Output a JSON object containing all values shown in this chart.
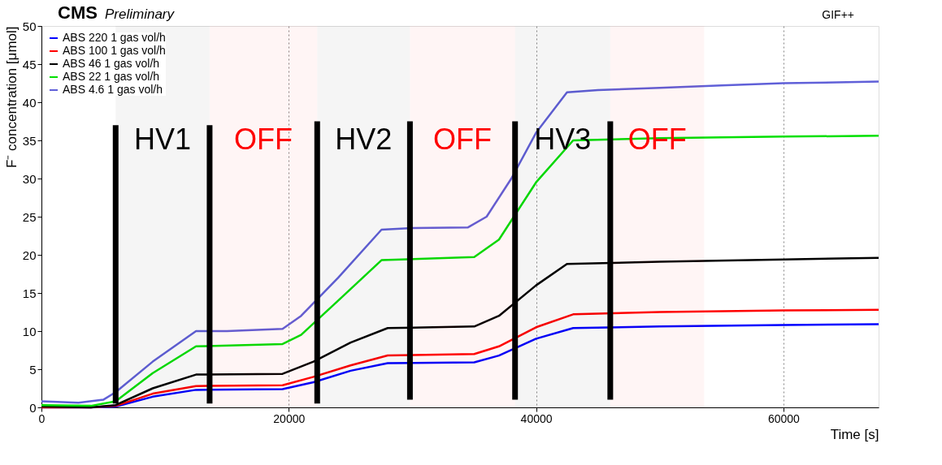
{
  "chart_data": {
    "type": "line",
    "title": "CMS",
    "subtitle": "Preliminary",
    "xlabel": "Time [s]",
    "ylabel": "F⁻ concentration [μmol]",
    "xlim": [
      0,
      67700
    ],
    "xticks": [
      0,
      20000,
      40000,
      60000
    ],
    "ylim": [
      0,
      50
    ],
    "yticks": [
      0,
      5,
      10,
      15,
      20,
      25,
      30,
      35,
      40,
      45,
      50
    ],
    "grid": "x",
    "legend": "top left",
    "marker": "none",
    "line_style": "solid",
    "annotations": [
      "GIF++"
    ],
    "bands": [
      {
        "axis": "x",
        "from": 6000,
        "to": 13600,
        "label": "HV1",
        "color": "#000000"
      },
      {
        "axis": "x",
        "from": 13600,
        "to": 22300,
        "label": "OFF",
        "color": "#ff0000"
      },
      {
        "axis": "x",
        "from": 22300,
        "to": 29800,
        "label": "HV2",
        "color": "#000000"
      },
      {
        "axis": "x",
        "from": 29800,
        "to": 38300,
        "label": "OFF",
        "color": "#ff0000"
      },
      {
        "axis": "x",
        "from": 38300,
        "to": 46000,
        "label": "HV3",
        "color": "#000000"
      },
      {
        "axis": "x",
        "from": 46000,
        "to": 53600,
        "label": "OFF",
        "color": "#ff0000"
      }
    ],
    "series": [
      {
        "name": "ABS 220 1 gas vol/h",
        "color": "#0000ff",
        "x": [
          0,
          4000,
          6000,
          9000,
          12500,
          19500,
          22000,
          25000,
          28000,
          35000,
          37000,
          40000,
          43000,
          50000,
          60000,
          67700
        ],
        "values": [
          0,
          0,
          0.1,
          1.4,
          2.3,
          2.4,
          3.3,
          4.8,
          5.8,
          5.9,
          6.8,
          9,
          10.4,
          10.6,
          10.8,
          10.9
        ]
      },
      {
        "name": "ABS 100 1 gas vol/h",
        "color": "#ff0000",
        "x": [
          0,
          4000,
          6000,
          9000,
          12500,
          19500,
          22000,
          25000,
          28000,
          35000,
          37000,
          40000,
          43000,
          50000,
          60000,
          67700
        ],
        "values": [
          0,
          0,
          0.2,
          1.8,
          2.8,
          2.9,
          4,
          5.5,
          6.8,
          7,
          8,
          10.5,
          12.2,
          12.5,
          12.7,
          12.8
        ]
      },
      {
        "name": "ABS 46 1 gas vol/h",
        "color": "#000000",
        "x": [
          0,
          4000,
          6000,
          9000,
          12500,
          19500,
          22000,
          25000,
          28000,
          35000,
          37000,
          40000,
          42500,
          50000,
          60000,
          67700
        ],
        "values": [
          0.1,
          0,
          0.3,
          2.5,
          4.3,
          4.4,
          6,
          8.5,
          10.4,
          10.6,
          12,
          16,
          18.8,
          19.1,
          19.4,
          19.6
        ]
      },
      {
        "name": "ABS 22 1 gas vol/h",
        "color": "#00e000",
        "x": [
          0,
          4000,
          6000,
          9000,
          12500,
          19500,
          21000,
          24000,
          27500,
          35000,
          37000,
          40000,
          43000,
          50000,
          60000,
          67700
        ],
        "values": [
          0.3,
          0.2,
          0.8,
          4.5,
          8,
          8.3,
          9.5,
          14,
          19.3,
          19.7,
          22,
          29.5,
          35,
          35.3,
          35.5,
          35.6
        ]
      },
      {
        "name": "ABS 4.6 1 gas vol/h",
        "color": "#6060d8",
        "x": [
          0,
          3000,
          5000,
          6000,
          9000,
          12500,
          15000,
          19500,
          21000,
          24000,
          27500,
          30000,
          34500,
          36000,
          38000,
          40000,
          42500,
          45000,
          50000,
          55000,
          60000,
          67700
        ],
        "values": [
          0.8,
          0.6,
          1,
          2,
          6,
          10,
          10,
          10.3,
          12,
          17,
          23.3,
          23.5,
          23.6,
          25,
          30,
          36,
          41.3,
          41.6,
          41.9,
          42.2,
          42.5,
          42.7
        ]
      },
      {
        "color": "#000000",
        "x": [
          6000,
          6000
        ],
        "values": [
          0.5,
          37
        ]
      },
      {
        "color": "#000000",
        "x": [
          13600,
          13600
        ],
        "values": [
          0.5,
          37
        ]
      },
      {
        "color": "#000000",
        "x": [
          22300,
          22300
        ],
        "values": [
          0.5,
          37.5
        ]
      },
      {
        "color": "#000000",
        "x": [
          29800,
          29800
        ],
        "values": [
          1,
          37.5
        ]
      },
      {
        "color": "#000000",
        "x": [
          38300,
          38300
        ],
        "values": [
          1,
          37.5
        ]
      },
      {
        "color": "#000000",
        "x": [
          46000,
          46000
        ],
        "values": [
          1,
          37.5
        ]
      }
    ]
  }
}
